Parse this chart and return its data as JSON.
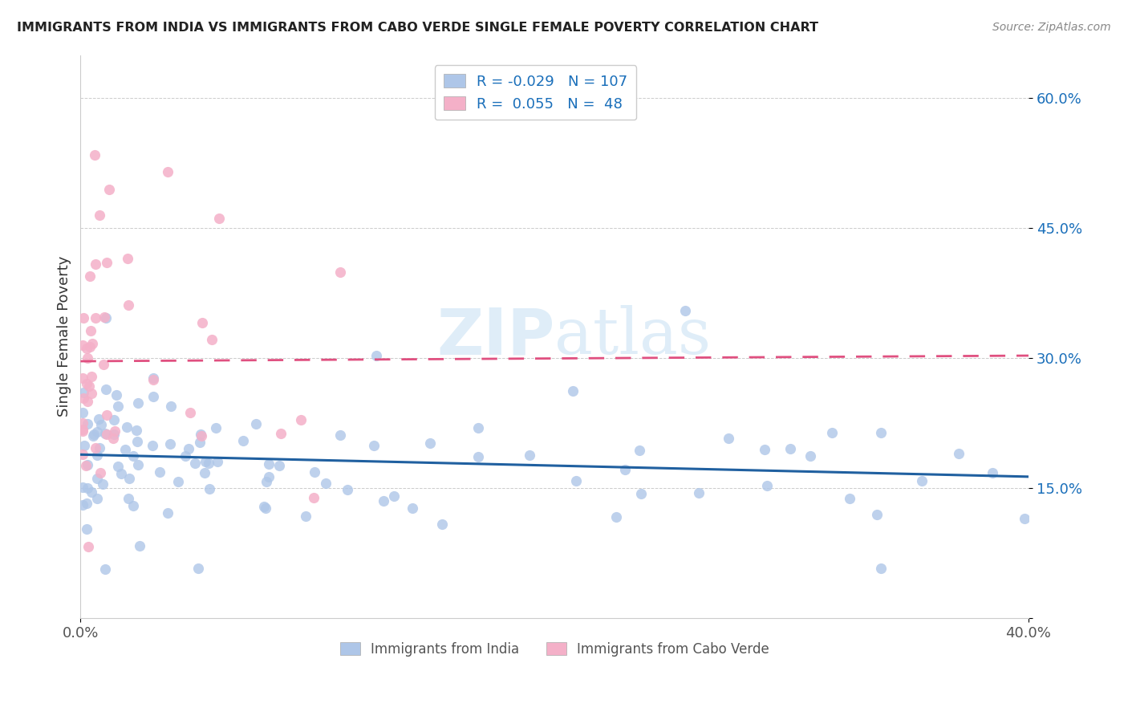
{
  "title": "IMMIGRANTS FROM INDIA VS IMMIGRANTS FROM CABO VERDE SINGLE FEMALE POVERTY CORRELATION CHART",
  "source": "Source: ZipAtlas.com",
  "ylabel": "Single Female Poverty",
  "y_ticks": [
    0.0,
    0.15,
    0.3,
    0.45,
    0.6
  ],
  "y_tick_labels": [
    "",
    "15.0%",
    "30.0%",
    "45.0%",
    "60.0%"
  ],
  "xlim": [
    0.0,
    0.4
  ],
  "ylim": [
    0.0,
    0.65
  ],
  "india_color": "#aec6e8",
  "india_edge_color": "#7aafd4",
  "india_line_color": "#2060a0",
  "cabo_color": "#f4b0c8",
  "cabo_edge_color": "#e080a0",
  "cabo_line_color": "#e05080",
  "india_R": -0.029,
  "india_N": 107,
  "cabo_R": 0.055,
  "cabo_N": 48,
  "watermark": "ZIPatlas",
  "grid_color": "#cccccc",
  "title_color": "#222222",
  "source_color": "#888888",
  "tick_color_y": "#1a6fba",
  "tick_color_x": "#555555",
  "legend_text_color": "#1a6fba",
  "bottom_legend_color": "#555555",
  "india_line_intercept": 0.172,
  "india_line_slope": -0.008,
  "cabo_line_intercept": 0.245,
  "cabo_line_slope": 0.2
}
